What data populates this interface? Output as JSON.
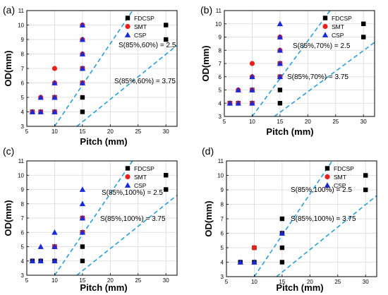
{
  "chart_data": [
    {
      "type": "scatter",
      "panel_label": "(a)",
      "xlabel": "Pitch (mm)",
      "ylabel": "OD(mm)",
      "xlim": [
        5,
        32
      ],
      "ylim": [
        3,
        11
      ],
      "xticks": [
        5,
        10,
        15,
        20,
        25,
        30
      ],
      "yticks": [
        3,
        4,
        5,
        6,
        7,
        8,
        9,
        10,
        11
      ],
      "grid": true,
      "legend_position": "top-right",
      "series": [
        {
          "name": "FDCSP",
          "marker": "square",
          "color": "#000000",
          "points": [
            [
              6,
              4
            ],
            [
              7.5,
              4
            ],
            [
              10,
              4
            ],
            [
              10,
              5
            ],
            [
              15,
              4
            ],
            [
              15,
              5
            ],
            [
              15,
              6
            ],
            [
              15,
              7
            ],
            [
              30,
              9
            ],
            [
              30,
              10
            ]
          ]
        },
        {
          "name": "SMT",
          "marker": "circle",
          "color": "#e8211b",
          "points": [
            [
              6,
              4
            ],
            [
              7.5,
              4
            ],
            [
              7.5,
              5
            ],
            [
              10,
              4
            ],
            [
              10,
              5
            ],
            [
              10,
              6
            ],
            [
              10,
              7
            ],
            [
              15,
              6
            ],
            [
              15,
              7
            ],
            [
              15,
              8
            ],
            [
              15,
              9
            ],
            [
              15,
              10
            ]
          ]
        },
        {
          "name": "CSP",
          "marker": "triangle",
          "color": "#1a2bd6",
          "points": [
            [
              6,
              4
            ],
            [
              7.5,
              4
            ],
            [
              7.5,
              5
            ],
            [
              10,
              4
            ],
            [
              10,
              5
            ],
            [
              10,
              6
            ],
            [
              15,
              6
            ],
            [
              15,
              7
            ],
            [
              15,
              8
            ],
            [
              15,
              9
            ],
            [
              15,
              10
            ]
          ]
        }
      ],
      "guide_lines": [
        {
          "label": "S(85%,60%) = 2.5",
          "color": "#2a9fd6",
          "points": [
            [
              10,
              3
            ],
            [
              24,
              11
            ]
          ]
        },
        {
          "label": "S(85%,60%) = 3.75",
          "color": "#2a9fd6",
          "points": [
            [
              14,
              3
            ],
            [
              32,
              8.6
            ]
          ]
        }
      ]
    },
    {
      "type": "scatter",
      "panel_label": "(b)",
      "xlabel": "Pitch (mm)",
      "ylabel": "OD(mm)",
      "xlim": [
        5,
        32
      ],
      "ylim": [
        3,
        11
      ],
      "xticks": [
        5,
        10,
        15,
        20,
        25,
        30
      ],
      "yticks": [
        3,
        4,
        5,
        6,
        7,
        8,
        9,
        10,
        11
      ],
      "grid": true,
      "legend_position": "top-right",
      "series": [
        {
          "name": "FDCSP",
          "marker": "square",
          "color": "#000000",
          "points": [
            [
              6,
              4
            ],
            [
              7.5,
              4
            ],
            [
              10,
              4
            ],
            [
              10,
              5
            ],
            [
              15,
              4
            ],
            [
              15,
              5
            ],
            [
              15,
              6
            ],
            [
              15,
              7
            ],
            [
              30,
              9
            ],
            [
              30,
              10
            ]
          ]
        },
        {
          "name": "SMT",
          "marker": "circle",
          "color": "#e8211b",
          "points": [
            [
              6,
              4
            ],
            [
              7.5,
              4
            ],
            [
              7.5,
              5
            ],
            [
              10,
              4
            ],
            [
              10,
              5
            ],
            [
              10,
              6
            ],
            [
              10,
              7
            ],
            [
              15,
              6
            ],
            [
              15,
              7
            ],
            [
              15,
              8
            ],
            [
              15,
              9
            ]
          ]
        },
        {
          "name": "CSP",
          "marker": "triangle",
          "color": "#1a2bd6",
          "points": [
            [
              6,
              4
            ],
            [
              7.5,
              4
            ],
            [
              7.5,
              5
            ],
            [
              10,
              4
            ],
            [
              10,
              5
            ],
            [
              10,
              6
            ],
            [
              15,
              6
            ],
            [
              15,
              7
            ],
            [
              15,
              8
            ],
            [
              15,
              9
            ],
            [
              15,
              10
            ]
          ]
        }
      ],
      "guide_lines": [
        {
          "label": "S(85%,70%) = 2.5",
          "color": "#2a9fd6",
          "points": [
            [
              10,
              3
            ],
            [
              24,
              11
            ]
          ]
        },
        {
          "label": "S(85%,70%) = 3.75",
          "color": "#2a9fd6",
          "points": [
            [
              14,
              3
            ],
            [
              32,
              8.6
            ]
          ]
        }
      ]
    },
    {
      "type": "scatter",
      "panel_label": "(c)",
      "xlabel": "Pitch (mm)",
      "ylabel": "OD(mm)",
      "xlim": [
        5,
        32
      ],
      "ylim": [
        3,
        11
      ],
      "xticks": [
        5,
        10,
        15,
        20,
        25,
        30
      ],
      "yticks": [
        3,
        4,
        5,
        6,
        7,
        8,
        9,
        10,
        11
      ],
      "grid": true,
      "legend_position": "top-right",
      "series": [
        {
          "name": "FDCSP",
          "marker": "square",
          "color": "#000000",
          "points": [
            [
              6,
              4
            ],
            [
              7.5,
              4
            ],
            [
              10,
              4
            ],
            [
              10,
              5
            ],
            [
              15,
              4
            ],
            [
              15,
              5
            ],
            [
              15,
              6
            ],
            [
              15,
              7
            ],
            [
              30,
              9
            ],
            [
              30,
              10
            ]
          ]
        },
        {
          "name": "SMT",
          "marker": "circle",
          "color": "#e8211b",
          "points": [
            [
              10,
              5
            ],
            [
              15,
              6
            ],
            [
              15,
              7
            ]
          ]
        },
        {
          "name": "CSP",
          "marker": "triangle",
          "color": "#1a2bd6",
          "points": [
            [
              6,
              4
            ],
            [
              7.5,
              4
            ],
            [
              7.5,
              5
            ],
            [
              10,
              4
            ],
            [
              10,
              5
            ],
            [
              10,
              6
            ],
            [
              15,
              6
            ],
            [
              15,
              7
            ],
            [
              15,
              8
            ],
            [
              15,
              9
            ]
          ]
        }
      ],
      "guide_lines": [
        {
          "label": "S(85%,100%) = 2.5",
          "color": "#2a9fd6",
          "points": [
            [
              10,
              3
            ],
            [
              24,
              11
            ]
          ]
        },
        {
          "label": "S(85%,100%) = 3.75",
          "color": "#2a9fd6",
          "points": [
            [
              14,
              3
            ],
            [
              32,
              8.6
            ]
          ]
        }
      ]
    },
    {
      "type": "scatter",
      "panel_label": "(d)",
      "xlabel": "Pitch (mm)",
      "ylabel": "OD(mm)",
      "xlim": [
        5,
        32
      ],
      "ylim": [
        3,
        11
      ],
      "xticks": [
        5,
        10,
        15,
        20,
        25,
        30
      ],
      "yticks": [
        3,
        4,
        5,
        6,
        7,
        8,
        9,
        10,
        11
      ],
      "grid": true,
      "legend_position": "top-right",
      "series": [
        {
          "name": "FDCSP",
          "marker": "square",
          "color": "#000000",
          "points": [
            [
              7.5,
              4
            ],
            [
              10,
              4
            ],
            [
              10,
              5
            ],
            [
              15,
              4
            ],
            [
              15,
              5
            ],
            [
              15,
              6
            ],
            [
              15,
              7
            ],
            [
              30,
              9
            ],
            [
              30,
              10
            ]
          ]
        },
        {
          "name": "SMT",
          "marker": "circle",
          "color": "#e8211b",
          "points": [
            [
              10,
              5
            ]
          ]
        },
        {
          "name": "CSP",
          "marker": "triangle",
          "color": "#1a2bd6",
          "points": [
            [
              7.5,
              4
            ],
            [
              10,
              4
            ],
            [
              15,
              6
            ]
          ]
        }
      ],
      "guide_lines": [
        {
          "label": "S(85%,100%) = 2.5",
          "color": "#2a9fd6",
          "points": [
            [
              10,
              3
            ],
            [
              24,
              11
            ]
          ]
        },
        {
          "label": "S(85%,100%) = 3.75",
          "color": "#2a9fd6",
          "points": [
            [
              14,
              3
            ],
            [
              32,
              8.6
            ]
          ]
        }
      ]
    }
  ]
}
